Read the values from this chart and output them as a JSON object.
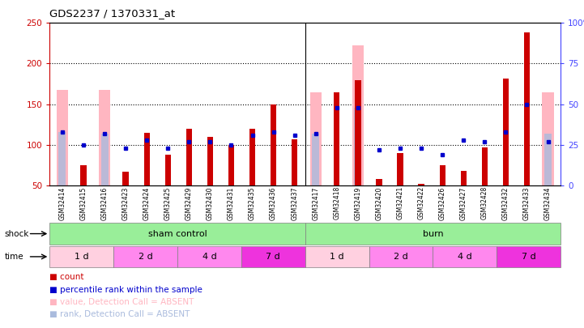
{
  "title": "GDS2237 / 1370331_at",
  "samples": [
    "GSM32414",
    "GSM32415",
    "GSM32416",
    "GSM32423",
    "GSM32424",
    "GSM32425",
    "GSM32429",
    "GSM32430",
    "GSM32431",
    "GSM32435",
    "GSM32436",
    "GSM32437",
    "GSM32417",
    "GSM32418",
    "GSM32419",
    "GSM32420",
    "GSM32421",
    "GSM32422",
    "GSM32426",
    "GSM32427",
    "GSM32428",
    "GSM32432",
    "GSM32433",
    "GSM32434"
  ],
  "red_bars": [
    0,
    75,
    0,
    67,
    115,
    88,
    120,
    110,
    100,
    120,
    150,
    107,
    0,
    165,
    180,
    58,
    90,
    52,
    75,
    68,
    97,
    182,
    238,
    0
  ],
  "pink_bars": [
    168,
    0,
    168,
    0,
    0,
    0,
    0,
    0,
    0,
    0,
    0,
    0,
    165,
    0,
    222,
    0,
    0,
    0,
    0,
    0,
    0,
    0,
    0,
    165
  ],
  "blue_dots_pct": [
    33,
    25,
    32,
    23,
    28,
    23,
    27,
    27,
    25,
    31,
    33,
    31,
    32,
    48,
    48,
    22,
    23,
    23,
    19,
    28,
    27,
    33,
    50,
    27
  ],
  "light_blue_bars_pct": [
    33,
    0,
    32,
    0,
    0,
    0,
    0,
    0,
    0,
    0,
    0,
    0,
    32,
    0,
    48,
    0,
    0,
    0,
    0,
    0,
    0,
    0,
    0,
    32
  ],
  "ylim_left": [
    50,
    250
  ],
  "ylim_right": [
    0,
    100
  ],
  "yticks_left": [
    50,
    100,
    150,
    200,
    250
  ],
  "yticks_right": [
    0,
    25,
    50,
    75,
    100
  ],
  "red_color": "#CC0000",
  "pink_color": "#FFB6C1",
  "blue_color": "#0000CC",
  "light_blue_color": "#AABBDD",
  "bg_color": "#ffffff",
  "left_axis_color": "#CC0000",
  "right_axis_color": "#4444FF",
  "time_1d_color": "#FFD0D0",
  "time_2d_color": "#FF88FF",
  "time_4d_color": "#FF88FF",
  "time_7d_color": "#EE44EE",
  "shock_color": "#99EE99"
}
